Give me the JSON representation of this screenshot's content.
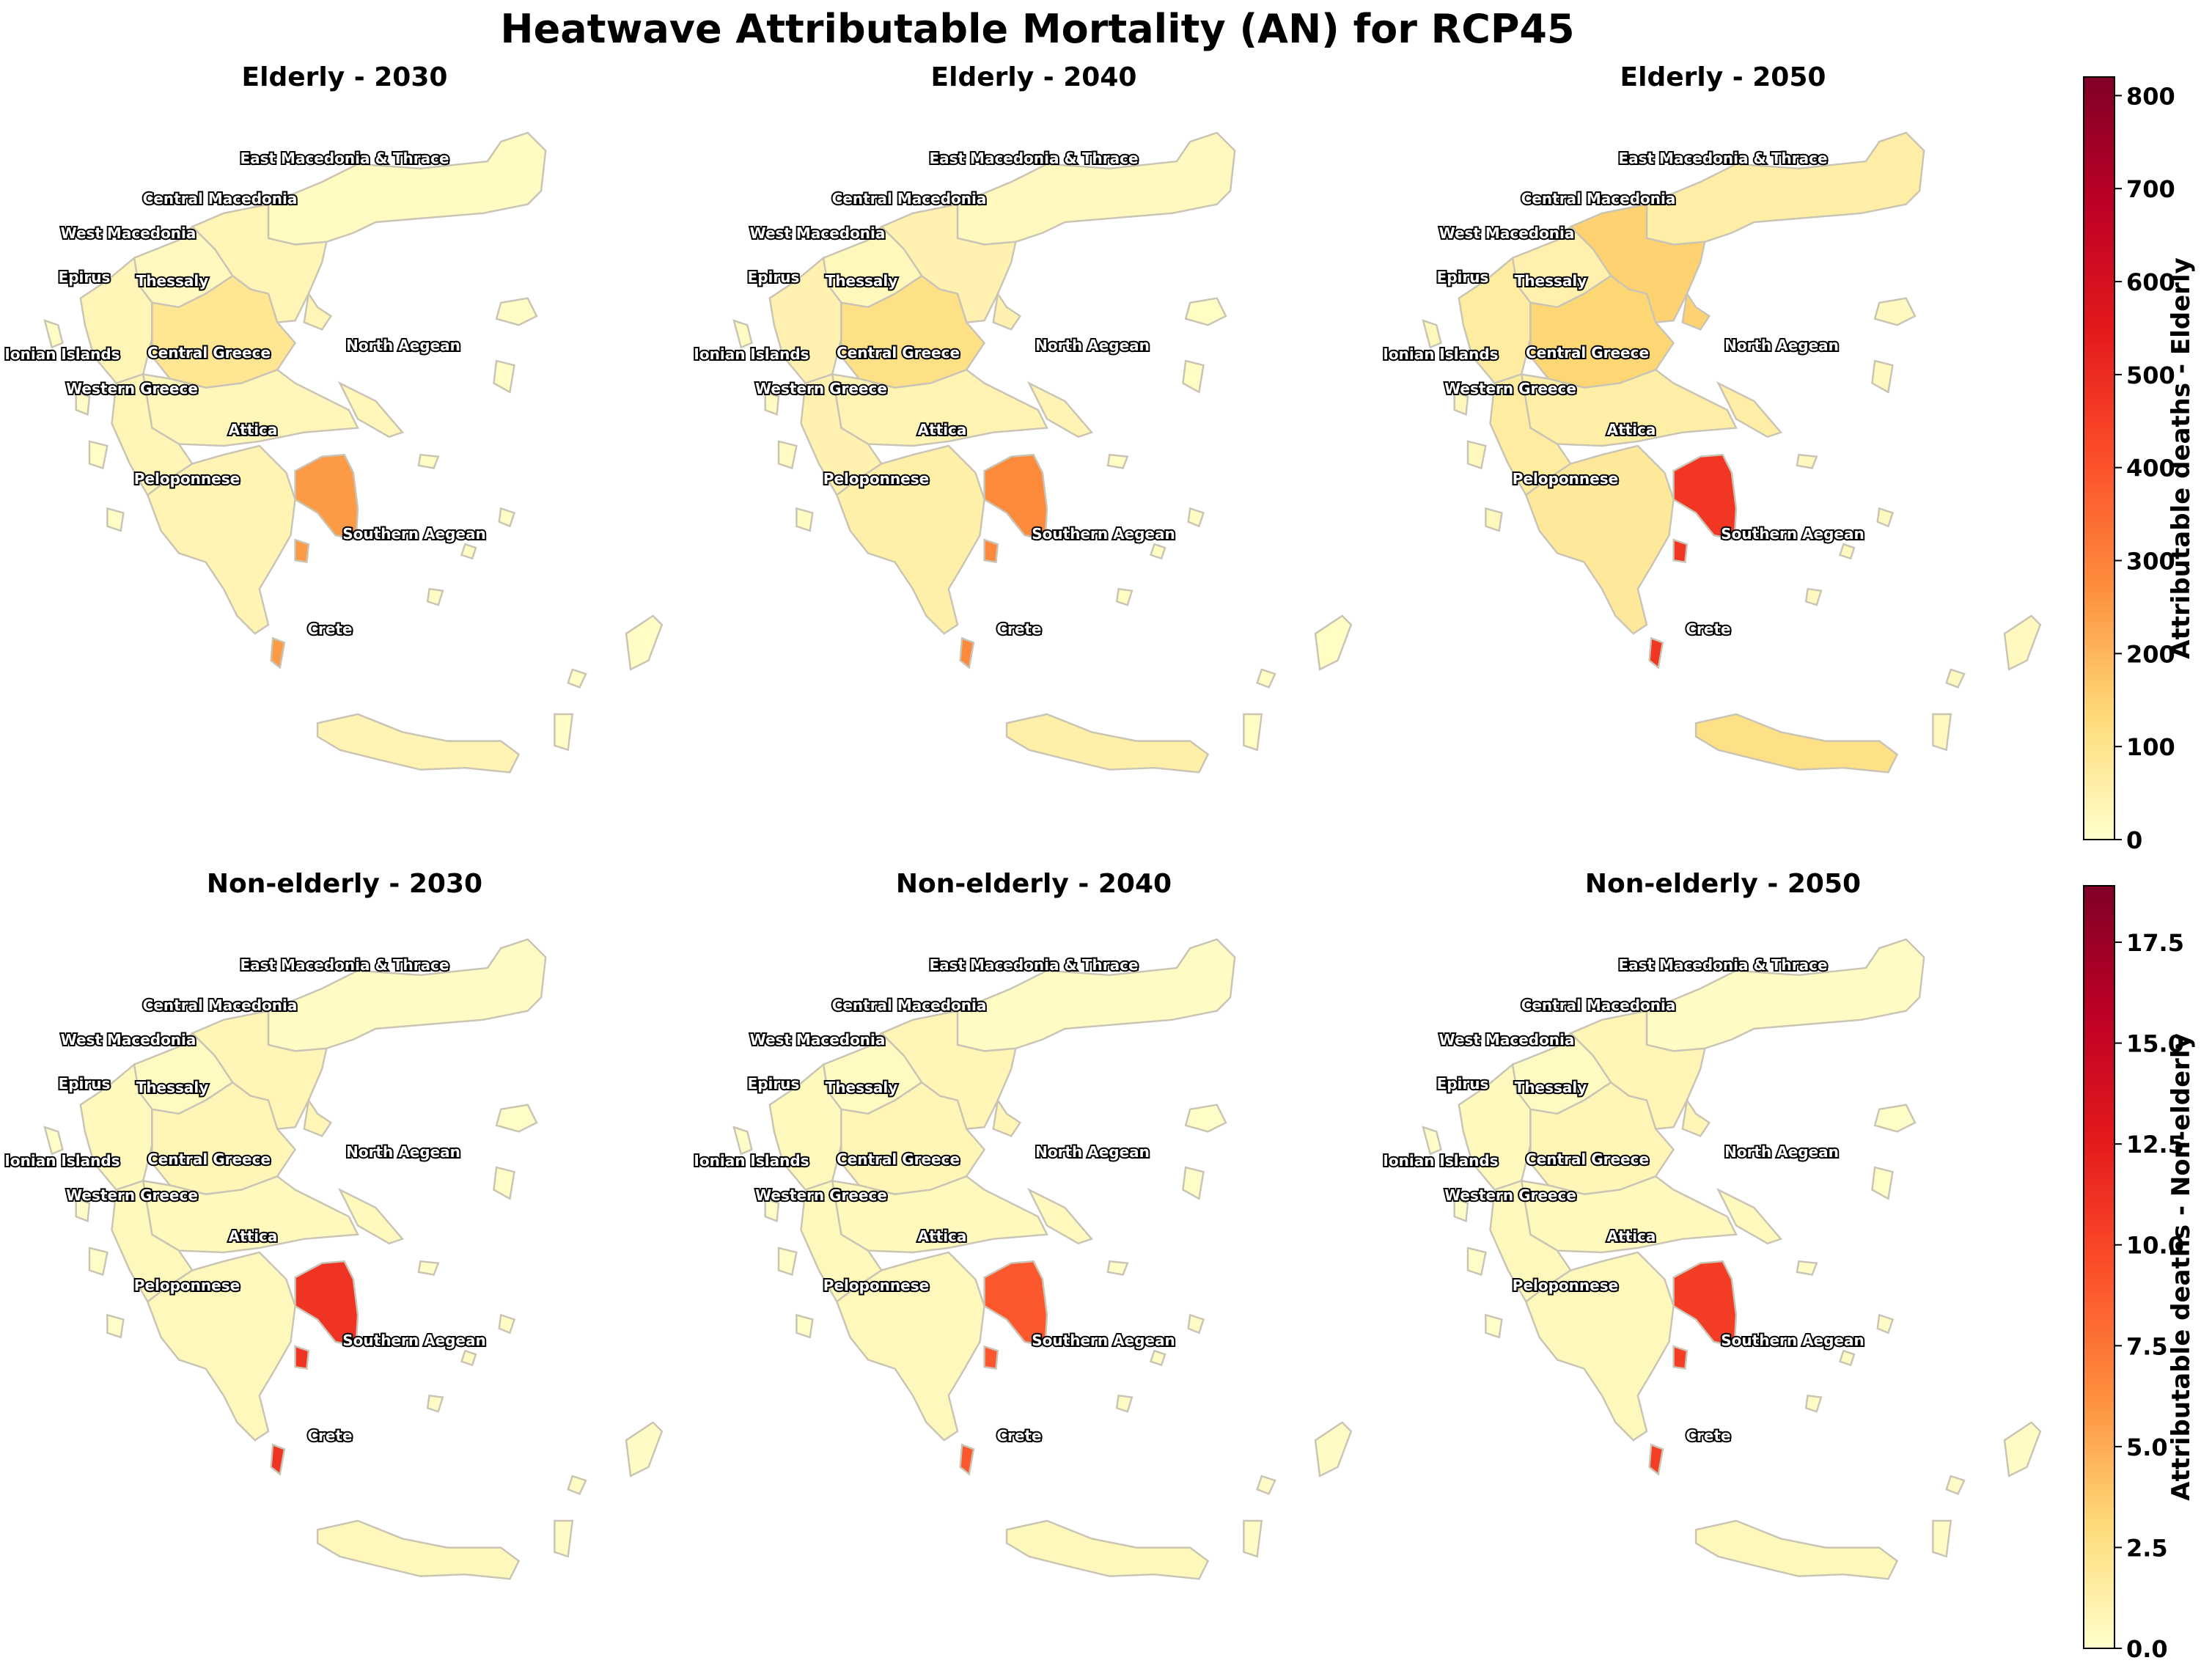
{
  "title": "Heatwave Attributable Mortality (AN) for RCP45",
  "chart_data": {
    "type": "choropleth",
    "title": "Heatwave Attributable Mortality (AN) for RCP45",
    "regions": [
      "East Macedonia & Thrace",
      "Central Macedonia",
      "West Macedonia",
      "Epirus",
      "Thessaly",
      "Ionian Islands",
      "Central Greece",
      "North Aegean",
      "Western Greece",
      "Attica",
      "Peloponnese",
      "Southern Aegean",
      "Crete"
    ],
    "colorscale": [
      "#ffffcc",
      "#fed976",
      "#fd8d3c",
      "#fc4e2a",
      "#e31a1c",
      "#bd0026",
      "#800026"
    ],
    "colorbars": [
      {
        "label": "Attributable deaths - Elderly",
        "range": [
          0,
          820
        ],
        "ticks": [
          "0",
          "100",
          "200",
          "300",
          "400",
          "500",
          "600",
          "700",
          "800"
        ]
      },
      {
        "label": "Attributable deaths - Non-elderly",
        "range": [
          0,
          18.9
        ],
        "ticks": [
          "0.0",
          "2.5",
          "5.0",
          "7.5",
          "10.0",
          "12.5",
          "15.0",
          "17.5"
        ]
      }
    ],
    "panels": [
      {
        "title": "Elderly - 2030",
        "colorbar": 0,
        "values": {
          "East Macedonia & Thrace": 15,
          "Central Macedonia": 35,
          "West Macedonia": 20,
          "Epirus": 35,
          "Thessaly": 90,
          "Ionian Islands": 10,
          "Central Greece": 30,
          "North Aegean": 10,
          "Western Greece": 35,
          "Attica": 250,
          "Peloponnese": 40,
          "Southern Aegean": 10,
          "Crete": 40
        }
      },
      {
        "title": "Elderly - 2040",
        "colorbar": 0,
        "values": {
          "East Macedonia & Thrace": 20,
          "Central Macedonia": 45,
          "West Macedonia": 25,
          "Epirus": 45,
          "Thessaly": 110,
          "Ionian Islands": 15,
          "Central Greece": 40,
          "North Aegean": 12,
          "Western Greece": 45,
          "Attica": 280,
          "Peloponnese": 55,
          "Southern Aegean": 12,
          "Crete": 55
        }
      },
      {
        "title": "Elderly - 2050",
        "colorbar": 0,
        "values": {
          "East Macedonia & Thrace": 60,
          "Central Macedonia": 150,
          "West Macedonia": 50,
          "Epirus": 70,
          "Thessaly": 140,
          "Ionian Islands": 25,
          "Central Greece": 60,
          "North Aegean": 20,
          "Western Greece": 70,
          "Attica": 470,
          "Peloponnese": 80,
          "Southern Aegean": 20,
          "Crete": 110
        }
      },
      {
        "title": "Non-elderly - 2030",
        "colorbar": 1,
        "values": {
          "East Macedonia & Thrace": 0.3,
          "Central Macedonia": 0.8,
          "West Macedonia": 0.4,
          "Epirus": 0.5,
          "Thessaly": 0.8,
          "Ionian Islands": 0.2,
          "Central Greece": 0.5,
          "North Aegean": 0.2,
          "Western Greece": 0.6,
          "Attica": 11.0,
          "Peloponnese": 0.6,
          "Southern Aegean": 0.3,
          "Crete": 0.6
        }
      },
      {
        "title": "Non-elderly - 2040",
        "colorbar": 1,
        "values": {
          "East Macedonia & Thrace": 0.3,
          "Central Macedonia": 0.8,
          "West Macedonia": 0.4,
          "Epirus": 0.5,
          "Thessaly": 0.8,
          "Ionian Islands": 0.2,
          "Central Greece": 0.5,
          "North Aegean": 0.2,
          "Western Greece": 0.6,
          "Attica": 9.0,
          "Peloponnese": 0.6,
          "Southern Aegean": 0.3,
          "Crete": 0.6
        }
      },
      {
        "title": "Non-elderly - 2050",
        "colorbar": 1,
        "values": {
          "East Macedonia & Thrace": 0.3,
          "Central Macedonia": 0.8,
          "West Macedonia": 0.4,
          "Epirus": 0.5,
          "Thessaly": 0.8,
          "Ionian Islands": 0.2,
          "Central Greece": 0.5,
          "North Aegean": 0.2,
          "Western Greece": 0.6,
          "Attica": 10.5,
          "Peloponnese": 0.6,
          "Southern Aegean": 0.3,
          "Crete": 0.6
        }
      }
    ]
  }
}
